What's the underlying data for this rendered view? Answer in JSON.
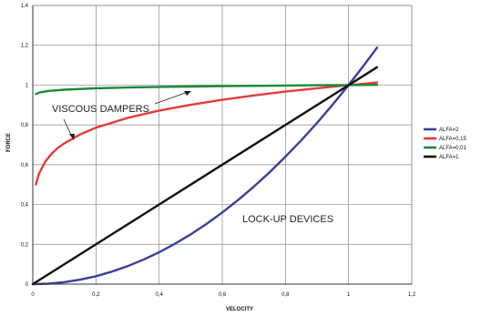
{
  "chart_data": {
    "type": "line",
    "title": "",
    "xlabel": "VELOCITY",
    "ylabel": "FORCE",
    "xlim": [
      0,
      1.2
    ],
    "ylim": [
      0,
      1.4
    ],
    "x_ticks": [
      "0",
      "0,2",
      "0,4",
      "0,6",
      "0,8",
      "1",
      "1,2"
    ],
    "y_ticks": [
      "0",
      "0,2",
      "0,4",
      "0,6",
      "0,8",
      "1",
      "1,2",
      "1,4"
    ],
    "grid": true,
    "legend_position": "right",
    "series": [
      {
        "name": "ALFA=2",
        "color": "#3a3f9e",
        "x": [
          0,
          0.05,
          0.1,
          0.15,
          0.2,
          0.25,
          0.3,
          0.35,
          0.4,
          0.45,
          0.5,
          0.55,
          0.6,
          0.65,
          0.7,
          0.75,
          0.8,
          0.85,
          0.9,
          0.95,
          1.0,
          1.05,
          1.09
        ],
        "y": [
          0,
          0.0025,
          0.01,
          0.0225,
          0.04,
          0.0625,
          0.09,
          0.1225,
          0.16,
          0.2025,
          0.25,
          0.3025,
          0.36,
          0.4225,
          0.49,
          0.5625,
          0.64,
          0.7225,
          0.81,
          0.9025,
          1.0,
          1.1025,
          1.188
        ]
      },
      {
        "name": "ALFA=0,15",
        "color": "#e53b3b",
        "x": [
          0.01,
          0.02,
          0.04,
          0.06,
          0.08,
          0.1,
          0.15,
          0.2,
          0.3,
          0.4,
          0.5,
          0.6,
          0.7,
          0.8,
          0.9,
          1.0,
          1.05,
          1.09
        ],
        "y": [
          0.501,
          0.556,
          0.617,
          0.656,
          0.685,
          0.708,
          0.752,
          0.786,
          0.835,
          0.872,
          0.901,
          0.926,
          0.948,
          0.967,
          0.984,
          1.0,
          1.007,
          1.013
        ]
      },
      {
        "name": "ALFA=0,01",
        "color": "#1a8a3a",
        "x": [
          0.01,
          0.02,
          0.05,
          0.1,
          0.2,
          0.3,
          0.4,
          0.5,
          0.6,
          0.7,
          0.8,
          0.9,
          1.0,
          1.09
        ],
        "y": [
          0.955,
          0.962,
          0.971,
          0.977,
          0.984,
          0.988,
          0.991,
          0.993,
          0.995,
          0.996,
          0.998,
          0.999,
          1.0,
          1.001
        ]
      },
      {
        "name": "ALFA=1",
        "color": "#111111",
        "x": [
          0,
          1.09
        ],
        "y": [
          0,
          1.09
        ]
      }
    ],
    "annotations": [
      {
        "text": "VISCOUS DAMPERS",
        "x": 0.06,
        "y": 0.85
      },
      {
        "text": "LOCK-UP DEVICES",
        "x": 0.68,
        "y": 0.33
      }
    ]
  }
}
